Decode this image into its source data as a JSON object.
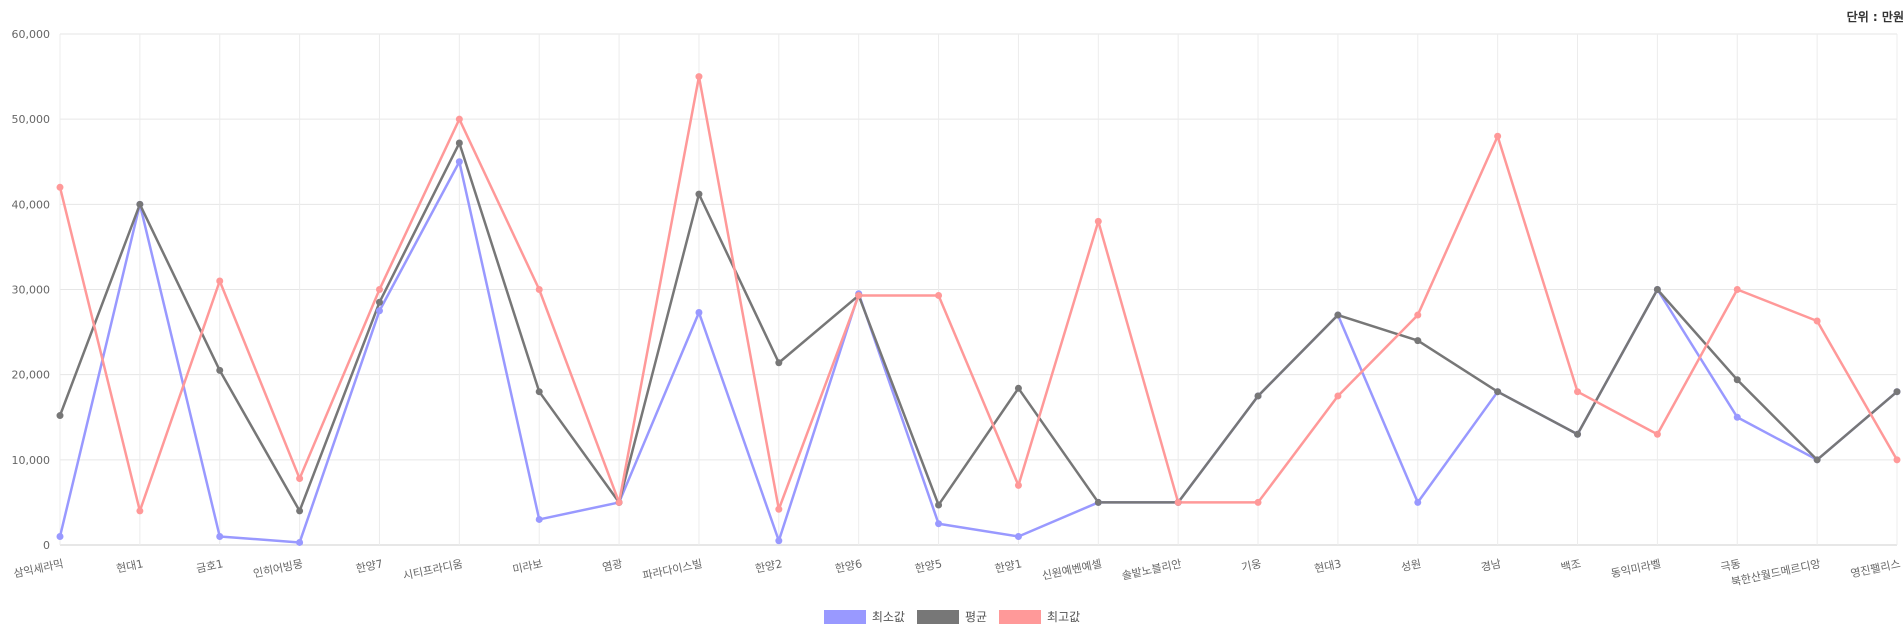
{
  "unit_label": "단위 : 만원",
  "chart_data": {
    "type": "line",
    "categories": [
      "삼익세라믹",
      "현대1",
      "금호1",
      "인히어빙뭉",
      "한양7",
      "시티프라디움",
      "미라보",
      "염광",
      "파라다이스빌",
      "한양2",
      "한양6",
      "한양5",
      "한양1",
      "신원예벤예셀",
      "솔밭노블리안",
      "기웅",
      "현대3",
      "성원",
      "경남",
      "백조",
      "동익미라벨",
      "극동",
      "북한산월드메르디앙",
      "영진팰리스"
    ],
    "ylim": [
      0,
      60000
    ],
    "yticks": [
      "0",
      "10,000",
      "20,000",
      "30,000",
      "40,000",
      "50,000",
      "60,000"
    ],
    "grid": true,
    "legend_position": "bottom",
    "series": [
      {
        "name": "최소값",
        "color": "#9999ff",
        "values": [
          1000,
          40000,
          1000,
          300,
          27500,
          45000,
          3000,
          5000,
          27300,
          500,
          29500,
          2500,
          1000,
          5000,
          5000,
          17500,
          27000,
          5000,
          18000,
          13000,
          30000,
          15000,
          10000,
          18000
        ]
      },
      {
        "name": "평균",
        "color": "#777777",
        "values": [
          15200,
          40000,
          20500,
          4000,
          28500,
          47200,
          18000,
          5000,
          41200,
          21400,
          29300,
          4700,
          18400,
          5000,
          5000,
          17500,
          27000,
          24000,
          18000,
          13000,
          30000,
          19400,
          10000,
          18000
        ]
      },
      {
        "name": "최고값",
        "color": "#ff9999",
        "values": [
          42000,
          4000,
          31000,
          7800,
          30000,
          50000,
          30000,
          5000,
          55000,
          4200,
          29300,
          29300,
          7000,
          38000,
          5000,
          5000,
          17500,
          27000,
          48000,
          18000,
          13000,
          30000,
          26300,
          10000
        ]
      }
    ]
  }
}
